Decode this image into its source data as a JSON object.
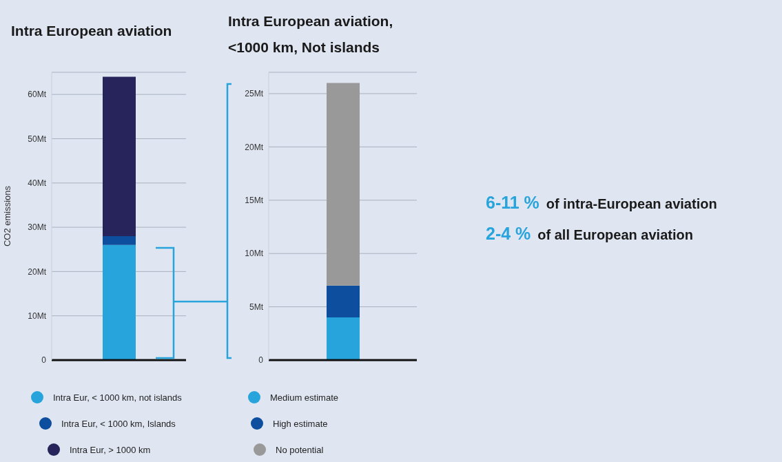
{
  "chart_data": [
    {
      "type": "bar",
      "title": "Intra European aviation",
      "ylabel": "CO2 emissions",
      "categories": [
        null
      ],
      "stacked": true,
      "grid": "y",
      "legend": "bottom",
      "marker": "circle",
      "series": [
        {
          "name": "Intra Eur, < 1000 km, not islands",
          "color": "#27a4dc",
          "values": [
            26
          ]
        },
        {
          "name": "Intra Eur, < 1000 km, Islands",
          "color": "#0d4f9e",
          "values": [
            2
          ]
        },
        {
          "name": "Intra Eur, > 1000 km",
          "color": "#27245c",
          "values": [
            36
          ]
        }
      ],
      "ylim": [
        0,
        65
      ],
      "yticks": [
        0,
        {
          "value": 10,
          "label": "10Mt"
        },
        {
          "value": 20,
          "label": "20Mt"
        },
        {
          "value": 30,
          "label": "30Mt"
        },
        {
          "value": 40,
          "label": "40Mt"
        },
        {
          "value": 50,
          "label": "50Mt"
        },
        {
          "value": 60,
          "label": "60Mt"
        }
      ]
    },
    {
      "type": "bar",
      "title": "Intra European aviation,\n<1000 km, Not islands",
      "categories": [
        null
      ],
      "stacked": true,
      "grid": "y",
      "legend": "bottom",
      "marker": "circle",
      "series": [
        {
          "name": "Medium estimate",
          "color": "#27a4dc",
          "values": [
            4
          ]
        },
        {
          "name": "High estimate",
          "color": "#0d4f9e",
          "values": [
            3
          ]
        },
        {
          "name": "No potential",
          "color": "#999999",
          "values": [
            19
          ]
        }
      ],
      "ylim": [
        0,
        27
      ],
      "yticks": [
        0,
        {
          "value": 5,
          "label": "5Mt"
        },
        {
          "value": 10,
          "label": "10Mt"
        },
        {
          "value": 15,
          "label": "15Mt"
        },
        {
          "value": 20,
          "label": "20Mt"
        },
        {
          "value": 25,
          "label": "25Mt"
        }
      ]
    },
    {
      "type": "other",
      "annotations": [
        "6-11 %",
        "of intra-European aviation",
        "2-4 %",
        "of all European aviation"
      ]
    }
  ]
}
